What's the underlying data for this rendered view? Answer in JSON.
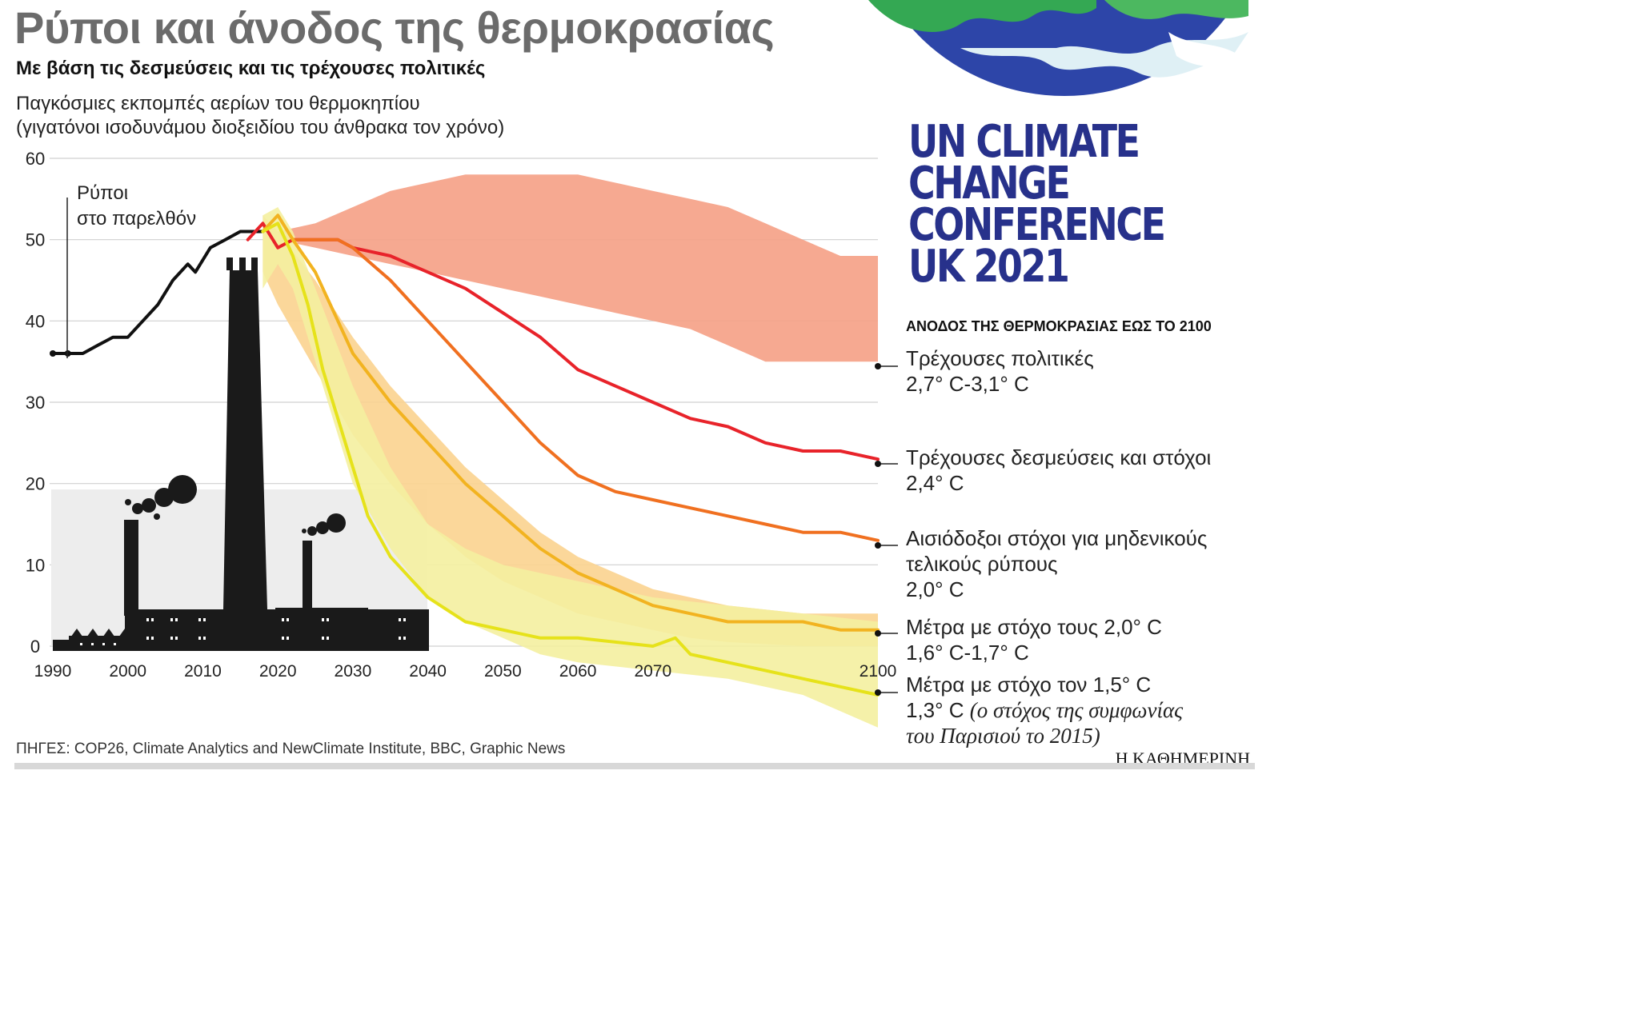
{
  "header": {
    "title": "Ρύποι και άνοδος της θερμοκρασίας",
    "subtitle": "Με βάση τις δεσμεύσεις και τις τρέχουσες πολιτικές",
    "ylabel_line1": "Παγκόσμιες εκπομπές αερίων του θερμοκηπίου",
    "ylabel_line2": "(γιγατόνοι ισοδυνάμου διοξειδίου του άνθρακα τον χρόνο)"
  },
  "conference": {
    "line1": "UN CLIMATE",
    "line2": "CHANGE",
    "line3": "CONFERENCE",
    "line4": "UK 2021",
    "color": "#27318b"
  },
  "legend": {
    "heading": "ΑΝΟΔΟΣ ΤΗΣ ΘΕΡΜΟΚΡΑΣΙΑΣ ΕΩΣ ΤΟ 2100",
    "items": [
      {
        "line1": "Τρέχουσες πολιτικές",
        "line2": "2,7° C-3,1° C"
      },
      {
        "line1": "Τρέχουσες δεσμεύσεις και στόχοι",
        "line2": "2,4° C"
      },
      {
        "line1": "Αισιόδοξοι στόχοι για μηδενικούς",
        "line2": "τελικούς ρύπους",
        "line3": "2,0° C"
      },
      {
        "line1": "Μέτρα με στόχο τους 2,0° C",
        "line2": "1,6° C-1,7° C"
      },
      {
        "line1": "Μέτρα με στόχο τον 1,5° C",
        "line2": "1,3° C ",
        "line2_italic": "(ο στόχος της συμφωνίας",
        "line3_italic": "του Παρισιού το 2015)"
      }
    ]
  },
  "past_label": {
    "line1": "Ρύποι",
    "line2": "στο παρελθόν"
  },
  "footer": {
    "sources": "ΠΗΓΕΣ: COP26, Climate Analytics and NewClimate Institute, BBC, Graphic News",
    "brand": "Η ΚΑΘΗΜΕΡΙΝΗ"
  },
  "chart_data": {
    "type": "line",
    "xlim": [
      1990,
      2100
    ],
    "ylim": [
      0,
      60
    ],
    "x_ticks": [
      1990,
      2000,
      2010,
      2020,
      2030,
      2040,
      2050,
      2060,
      2070,
      2100
    ],
    "y_ticks": [
      0,
      10,
      20,
      30,
      40,
      50,
      60
    ],
    "grid": true,
    "series": [
      {
        "key": "historical",
        "color": "#111111",
        "x": [
          1990,
          1994,
          1996,
          1998,
          2000,
          2002,
          2004,
          2006,
          2008,
          2009,
          2011,
          2013,
          2015,
          2016,
          2018
        ],
        "y": [
          36,
          36,
          37,
          38,
          38,
          40,
          42,
          45,
          47,
          46,
          49,
          50,
          51,
          51,
          51
        ]
      },
      {
        "key": "current_policies",
        "color": "#f08a6e",
        "band_x": [
          2020,
          2025,
          2030,
          2035,
          2040,
          2045,
          2050,
          2055,
          2060,
          2065,
          2070,
          2075,
          2080,
          2085,
          2090,
          2095,
          2100
        ],
        "band_low": [
          50,
          49,
          48,
          47,
          46,
          45,
          44,
          43,
          42,
          41,
          40,
          39,
          37,
          35,
          35,
          35,
          35
        ],
        "band_high": [
          51,
          52,
          54,
          56,
          57,
          58,
          58,
          58,
          58,
          57,
          56,
          55,
          54,
          52,
          50,
          48,
          48
        ]
      },
      {
        "key": "current_pledges",
        "color": "#e8232a",
        "x": [
          2016,
          2018,
          2020,
          2022,
          2025,
          2028,
          2030,
          2035,
          2040,
          2045,
          2050,
          2055,
          2060,
          2065,
          2070,
          2075,
          2080,
          2085,
          2090,
          2095,
          2100
        ],
        "y": [
          50,
          52,
          49,
          50,
          50,
          50,
          49,
          48,
          46,
          44,
          41,
          38,
          34,
          32,
          30,
          28,
          27,
          25,
          24,
          24,
          23
        ]
      },
      {
        "key": "optimistic_net_zero",
        "color": "#f07020",
        "x": [
          2022,
          2025,
          2028,
          2030,
          2035,
          2040,
          2045,
          2050,
          2055,
          2060,
          2065,
          2070,
          2075,
          2080,
          2085,
          2090,
          2095,
          2100
        ],
        "y": [
          50,
          50,
          50,
          49,
          45,
          40,
          35,
          30,
          25,
          21,
          19,
          18,
          17,
          16,
          15,
          14,
          14,
          13
        ]
      },
      {
        "key": "target_2_0",
        "color": "#f2b320",
        "band_low": [
          46,
          42,
          34,
          26,
          20,
          15,
          11,
          8,
          6,
          4,
          3,
          2,
          1,
          0.5,
          0,
          0
        ],
        "band_high": [
          53,
          51,
          45,
          38,
          32,
          27,
          22,
          18,
          14,
          11,
          9,
          7,
          6,
          5,
          4,
          4
        ],
        "band_x": [
          2018,
          2020,
          2025,
          2030,
          2035,
          2040,
          2045,
          2050,
          2055,
          2060,
          2065,
          2070,
          2075,
          2080,
          2090,
          2100
        ],
        "x": [
          2018,
          2020,
          2022,
          2025,
          2028,
          2030,
          2035,
          2040,
          2045,
          2050,
          2055,
          2060,
          2065,
          2070,
          2075,
          2080,
          2085,
          2090,
          2095,
          2100
        ],
        "y": [
          51,
          53,
          50,
          46,
          40,
          36,
          30,
          25,
          20,
          16,
          12,
          9,
          7,
          5,
          4,
          3,
          3,
          3,
          2,
          2
        ]
      },
      {
        "key": "target_1_5",
        "color": "#e6e21a",
        "band_x": [
          2018,
          2020,
          2022,
          2025,
          2030,
          2035,
          2040,
          2045,
          2050,
          2055,
          2060,
          2070,
          2080,
          2090,
          2100
        ],
        "band_low": [
          44,
          47,
          44,
          35,
          20,
          12,
          6,
          3,
          1,
          -1,
          -2,
          -3,
          -4,
          -6,
          -10
        ],
        "band_high": [
          53,
          54,
          51,
          44,
          32,
          22,
          15,
          12,
          10,
          9,
          8,
          6,
          5,
          4,
          3
        ],
        "x": [
          2018,
          2020,
          2022,
          2024,
          2026,
          2028,
          2030,
          2032,
          2035,
          2040,
          2045,
          2050,
          2055,
          2060,
          2065,
          2070,
          2073,
          2075,
          2080,
          2090,
          2095,
          2100
        ],
        "y": [
          51,
          52,
          48,
          42,
          34,
          28,
          22,
          16,
          11,
          6,
          3,
          2,
          1,
          1,
          0.5,
          0,
          1,
          -1,
          -2,
          -4,
          -5,
          -6
        ]
      }
    ]
  }
}
